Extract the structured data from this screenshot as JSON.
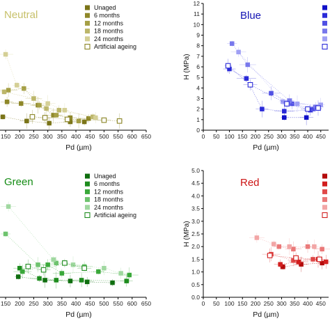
{
  "chart_data": [
    {
      "id": "neutral",
      "type": "scatter",
      "title": "Neutral",
      "title_color": "#c7c06a",
      "xlabel": "Pd (µm)",
      "ylabel": "",
      "xlim": [
        130,
        650
      ],
      "ylim": [
        1.0,
        8.6
      ],
      "xticks": [
        150,
        200,
        250,
        300,
        350,
        400,
        450,
        500,
        550,
        600,
        650
      ],
      "yticks": [],
      "legend_position": "top-right",
      "series": [
        {
          "name": "Unaged",
          "color": "#7a7418",
          "marker": "square",
          "filled": true,
          "points": [
            [
              140,
              1.8
            ],
            [
              225,
              1.55
            ],
            [
              305,
              1.42
            ],
            [
              380,
              1.5
            ],
            [
              430,
              1.5
            ]
          ]
        },
        {
          "name": "6 months",
          "color": "#8e8728",
          "marker": "square",
          "filled": true,
          "points": [
            [
              155,
              2.7
            ],
            [
              205,
              2.6
            ],
            [
              265,
              2.5
            ],
            [
              320,
              1.9
            ],
            [
              380,
              1.75
            ],
            [
              445,
              1.7
            ]
          ]
        },
        {
          "name": "12 months",
          "color": "#a59f45",
          "marker": "square",
          "filled": true,
          "points": [
            [
              160,
              3.4
            ],
            [
              215,
              3.5
            ],
            [
              270,
              2.5
            ],
            [
              330,
              1.9
            ],
            [
              410,
              1.55
            ]
          ]
        },
        {
          "name": "18 months",
          "color": "#bcb66a",
          "marker": "square",
          "filled": true,
          "points": [
            [
              145,
              3.3
            ],
            [
              250,
              2.9
            ],
            [
              295,
              2.3
            ],
            [
              340,
              2.2
            ],
            [
              460,
              1.8
            ]
          ]
        },
        {
          "name": "24 months",
          "color": "#d4cf95",
          "marker": "square",
          "filled": true,
          "points": [
            [
              150,
              5.55
            ],
            [
              190,
              3.7
            ],
            [
              300,
              2.6
            ],
            [
              360,
              2.2
            ],
            [
              470,
              1.75
            ]
          ]
        },
        {
          "name": "Artificial ageing",
          "color": "#8a8424",
          "marker": "square",
          "filled": false,
          "points": [
            [
              245,
              1.8
            ],
            [
              290,
              1.75
            ],
            [
              370,
              1.65
            ],
            [
              500,
              1.6
            ],
            [
              555,
              1.55
            ]
          ]
        }
      ]
    },
    {
      "id": "blue",
      "type": "scatter",
      "title": "Blue",
      "title_color": "#1414b4",
      "xlabel": "Pd (µm)",
      "ylabel": "H (MPa)",
      "xlim": [
        0,
        480
      ],
      "ylim": [
        0,
        12
      ],
      "xticks": [
        0,
        50,
        100,
        150,
        200,
        250,
        300,
        350,
        400,
        450
      ],
      "yticks": [
        0,
        1,
        2,
        3,
        4,
        5,
        6,
        7,
        8,
        9,
        10,
        11,
        12
      ],
      "legend_position": "top-right",
      "series": [
        {
          "name": "",
          "color": "#1010c8",
          "marker": "square",
          "filled": true,
          "points": [
            [
              310,
              1.2
            ],
            [
              395,
              1.2
            ]
          ]
        },
        {
          "name": "",
          "color": "#2a2ad8",
          "marker": "square",
          "filled": true,
          "points": [
            [
              100,
              5.8
            ],
            [
              165,
              4.9
            ],
            [
              225,
              2.0
            ],
            [
              310,
              1.8
            ],
            [
              410,
              1.9
            ]
          ]
        },
        {
          "name": "",
          "color": "#5050e4",
          "marker": "square",
          "filled": true,
          "points": [
            [
              260,
              3.5
            ],
            [
              340,
              2.5
            ],
            [
              420,
              2.0
            ]
          ]
        },
        {
          "name": "",
          "color": "#7878ec",
          "marker": "square",
          "filled": true,
          "points": [
            [
              110,
              8.2
            ],
            [
              170,
              6.2
            ],
            [
              330,
              2.8
            ],
            [
              430,
              2.2
            ]
          ]
        },
        {
          "name": "",
          "color": "#a0a0f4",
          "marker": "square",
          "filled": true,
          "points": [
            [
              135,
              7.4
            ],
            [
              305,
              2.7
            ],
            [
              360,
              2.5
            ],
            [
              450,
              2.4
            ]
          ]
        },
        {
          "name": "",
          "color": "#2a2ad8",
          "marker": "square",
          "filled": false,
          "points": [
            [
              95,
              6.1
            ],
            [
              180,
              4.3
            ],
            [
              320,
              2.5
            ],
            [
              400,
              2.0
            ],
            [
              440,
              2.1
            ]
          ]
        }
      ]
    },
    {
      "id": "green",
      "type": "scatter",
      "title": "Green",
      "title_color": "#148c14",
      "xlabel": "Pd (µm)",
      "ylabel": "",
      "xlim": [
        130,
        650
      ],
      "ylim": [
        0.6,
        8.0
      ],
      "xticks": [
        150,
        200,
        250,
        300,
        350,
        400,
        450,
        500,
        550,
        600,
        650
      ],
      "yticks": [],
      "legend_position": "top-right",
      "series": [
        {
          "name": "Unaged",
          "color": "#0f6e0f",
          "marker": "square",
          "filled": true,
          "points": [
            [
              195,
              1.8
            ],
            [
              290,
              1.6
            ],
            [
              380,
              1.55
            ],
            [
              440,
              1.5
            ],
            [
              530,
              1.45
            ]
          ]
        },
        {
          "name": "6 months",
          "color": "#1e8c1e",
          "marker": "square",
          "filled": true,
          "points": [
            [
              200,
              2.3
            ],
            [
              270,
              1.7
            ],
            [
              330,
              1.6
            ],
            [
              420,
              1.6
            ],
            [
              580,
              1.55
            ]
          ]
        },
        {
          "name": "12 months",
          "color": "#3aa83a",
          "marker": "square",
          "filled": true,
          "points": [
            [
              210,
              2.1
            ],
            [
              300,
              2.5
            ],
            [
              350,
              2.0
            ],
            [
              480,
              2.1
            ],
            [
              590,
              1.9
            ]
          ]
        },
        {
          "name": "18 months",
          "color": "#6ec36e",
          "marker": "square",
          "filled": true,
          "points": [
            [
              150,
              4.3
            ],
            [
              265,
              2.5
            ],
            [
              330,
              2.6
            ],
            [
              430,
              2.4
            ]
          ]
        },
        {
          "name": "24 months",
          "color": "#a0d8a0",
          "marker": "square",
          "filled": true,
          "points": [
            [
              160,
              5.9
            ],
            [
              320,
              2.8
            ],
            [
              390,
              2.5
            ],
            [
              500,
              2.3
            ],
            [
              560,
              2.0
            ]
          ]
        },
        {
          "name": "Artificial ageing",
          "color": "#1e8c1e",
          "marker": "square",
          "filled": false,
          "points": [
            [
              230,
              2.4
            ],
            [
              285,
              2.2
            ],
            [
              360,
              2.6
            ],
            [
              430,
              2.3
            ]
          ]
        }
      ]
    },
    {
      "id": "red",
      "type": "scatter",
      "title": "Red",
      "title_color": "#cc1414",
      "xlabel": "Pd (µm)",
      "ylabel": "H (MPa)",
      "xlim": [
        0,
        480
      ],
      "ylim": [
        0,
        5.0
      ],
      "xticks": [
        0,
        50,
        100,
        150,
        200,
        250,
        300,
        350,
        400,
        450
      ],
      "yticks": [
        0.0,
        0.5,
        1.0,
        1.5,
        2.0,
        2.5,
        3.0,
        3.5,
        4.0,
        4.5,
        5.0
      ],
      "legend_position": "top-right",
      "series": [
        {
          "name": "",
          "color": "#b40a0a",
          "marker": "square",
          "filled": true,
          "points": [
            [
              305,
              1.2
            ],
            [
              375,
              1.3
            ],
            [
              455,
              1.35
            ]
          ]
        },
        {
          "name": "",
          "color": "#d21e1e",
          "marker": "square",
          "filled": true,
          "points": [
            [
              295,
              1.3
            ],
            [
              365,
              1.4
            ],
            [
              440,
              1.5
            ],
            [
              470,
              1.4
            ]
          ]
        },
        {
          "name": "",
          "color": "#e04a4a",
          "marker": "square",
          "filled": true,
          "points": [
            [
              260,
              1.7
            ],
            [
              345,
              1.45
            ],
            [
              420,
              1.5
            ]
          ]
        },
        {
          "name": "",
          "color": "#ea7878",
          "marker": "square",
          "filled": true,
          "points": [
            [
              290,
              2.0
            ],
            [
              345,
              1.9
            ],
            [
              400,
              2.0
            ],
            [
              455,
              1.9
            ]
          ]
        },
        {
          "name": "",
          "color": "#f2a6a6",
          "marker": "square",
          "filled": true,
          "points": [
            [
              205,
              2.35
            ],
            [
              270,
              2.1
            ],
            [
              330,
              2.0
            ],
            [
              425,
              2.0
            ]
          ]
        },
        {
          "name": "",
          "color": "#d21e1e",
          "marker": "square",
          "filled": false,
          "points": [
            [
              255,
              1.65
            ],
            [
              355,
              1.55
            ],
            [
              445,
              1.5
            ]
          ]
        }
      ]
    }
  ]
}
